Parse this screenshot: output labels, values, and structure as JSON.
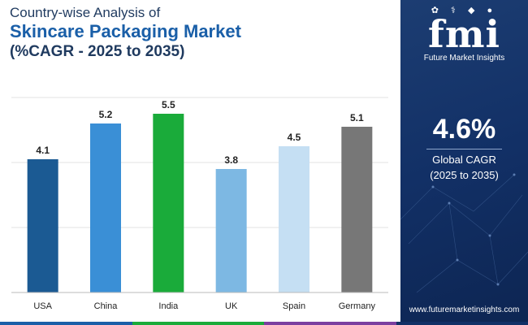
{
  "header": {
    "line1": "Country-wise Analysis of",
    "line2": "Skincare Packaging Market",
    "line3": "(%CAGR - 2025 to 2035)"
  },
  "chart_data": {
    "type": "bar",
    "categories": [
      "USA",
      "China",
      "India",
      "UK",
      "Spain",
      "Germany"
    ],
    "values": [
      4.1,
      5.2,
      5.5,
      3.8,
      4.5,
      5.1
    ],
    "value_labels": [
      "4.1",
      "5.2",
      "5.5",
      "3.8",
      "4.5",
      "5.1"
    ],
    "colors": [
      "#1b5a93",
      "#3a8fd6",
      "#1aab3a",
      "#7db8e3",
      "#c5dff3",
      "#777777"
    ],
    "ylim": [
      0,
      6.5
    ],
    "grid": true,
    "gridlines": [
      0,
      2,
      4,
      6
    ]
  },
  "sidebar": {
    "logo": "fmi",
    "logo_icons": "✿ ⚕ ◆ ●",
    "logo_sub": "Future Market Insights",
    "cagr_value": "4.6%",
    "cagr_label_1": "Global CAGR",
    "cagr_label_2": "(2025 to 2035)",
    "website": "www.futuremarketinsights.com"
  },
  "colors": {
    "panel": "#123066",
    "strip": [
      "#1a5fa8",
      "#1aab3a",
      "#7b3fa0",
      "#123066"
    ]
  }
}
